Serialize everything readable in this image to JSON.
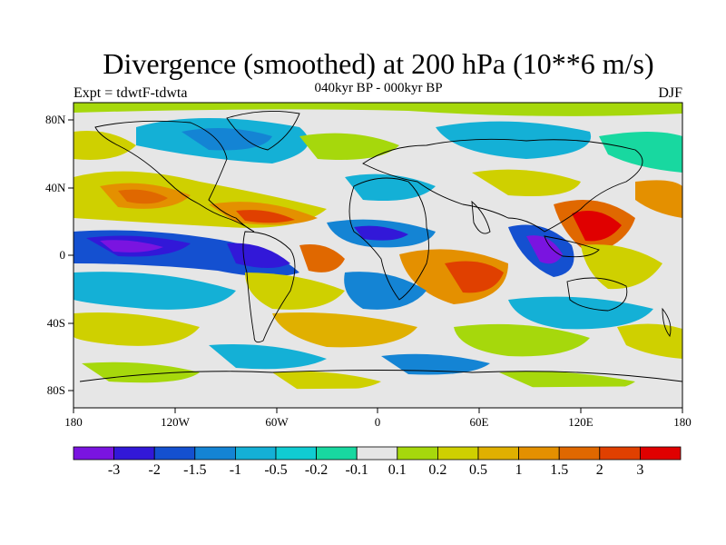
{
  "title": "Divergence (smoothed) at 200 hPa (10**6 m/s)",
  "subtitle": "040kyr BP - 000kyr BP",
  "left_label": "Expt = tdwtF-tdwta",
  "right_label": "DJF",
  "map": {
    "lat_labels": [
      "80N",
      "40N",
      "0",
      "40S",
      "80S"
    ],
    "lon_labels": [
      "180",
      "120W",
      "60W",
      "0",
      "60E",
      "120E",
      "180"
    ]
  },
  "colorbar": {
    "colors": [
      "#7a14e0",
      "#3218d8",
      "#1450d0",
      "#1484d4",
      "#14b0d6",
      "#10ccd2",
      "#18d8a0",
      "#e6e6e6",
      "#a6d80c",
      "#cfd000",
      "#e0b000",
      "#e49000",
      "#e06800",
      "#e04000",
      "#e00000"
    ],
    "labels": [
      "-3",
      "-2",
      "-1.5",
      "-1",
      "-0.5",
      "-0.2",
      "-0.1",
      "0.1",
      "0.2",
      "0.5",
      "1",
      "1.5",
      "2",
      "3"
    ]
  }
}
